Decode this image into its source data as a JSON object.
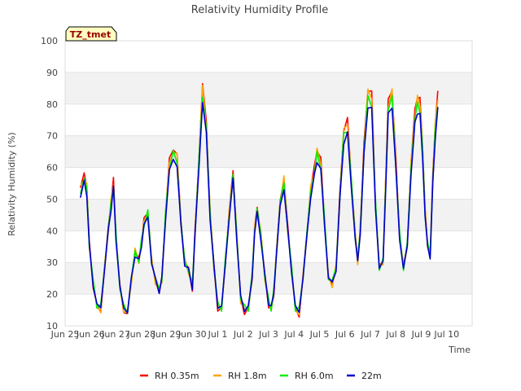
{
  "chart_data": {
    "type": "line",
    "title": "Relativity Humidity Profile",
    "xlabel": "Time",
    "ylabel": "Relativity Humidity (%)",
    "ylim": [
      10,
      100
    ],
    "xlim": [
      0,
      16
    ],
    "grid": "horizontal bands",
    "legend_position": "bottom-center",
    "annotation": "TZ_tmet",
    "y_ticks": [
      10,
      20,
      30,
      40,
      50,
      60,
      70,
      80,
      90,
      100
    ],
    "x_ticks": [
      {
        "pos": 0,
        "label": "Jun 25"
      },
      {
        "pos": 1,
        "label": "Jun 26"
      },
      {
        "pos": 2,
        "label": "Jun 27"
      },
      {
        "pos": 3,
        "label": "Jun 28"
      },
      {
        "pos": 4,
        "label": "Jun 29"
      },
      {
        "pos": 5,
        "label": "Jun 30"
      },
      {
        "pos": 6,
        "label": "Jul 1"
      },
      {
        "pos": 7,
        "label": "Jul 2"
      },
      {
        "pos": 8,
        "label": "Jul 3"
      },
      {
        "pos": 9,
        "label": "Jul 4"
      },
      {
        "pos": 10,
        "label": "Jul 5"
      },
      {
        "pos": 11,
        "label": "Jul 6"
      },
      {
        "pos": 12,
        "label": "Jul 7"
      },
      {
        "pos": 13,
        "label": "Jul 8"
      },
      {
        "pos": 14,
        "label": "Jul 9"
      },
      {
        "pos": 15,
        "label": "Jul 10"
      }
    ],
    "x_day_offset_label": "days since Jun 25",
    "base_profile": {
      "x": [
        0.6,
        0.75,
        0.85,
        0.95,
        1.1,
        1.25,
        1.4,
        1.55,
        1.7,
        1.8,
        1.9,
        2.0,
        2.15,
        2.3,
        2.45,
        2.6,
        2.75,
        2.9,
        3.0,
        3.1,
        3.25,
        3.4,
        3.55,
        3.7,
        3.8,
        3.95,
        4.1,
        4.25,
        4.4,
        4.55,
        4.7,
        4.85,
        5.0,
        5.1,
        5.25,
        5.4,
        5.55,
        5.7,
        5.85,
        6.0,
        6.15,
        6.3,
        6.45,
        6.6,
        6.75,
        6.9,
        7.05,
        7.2,
        7.35,
        7.45,
        7.55,
        7.7,
        7.85,
        8.0,
        8.1,
        8.2,
        8.3,
        8.45,
        8.6,
        8.75,
        8.9,
        9.05,
        9.2,
        9.35,
        9.5,
        9.65,
        9.8,
        9.9,
        10.05,
        10.2,
        10.35,
        10.5,
        10.65,
        10.8,
        10.95,
        11.1,
        11.25,
        11.4,
        11.5,
        11.6,
        11.75,
        11.9,
        12.05,
        12.2,
        12.35,
        12.5,
        12.6,
        12.7,
        12.85,
        13.0,
        13.15,
        13.3,
        13.45,
        13.6,
        13.75,
        13.85,
        13.95,
        14.05,
        14.15,
        14.25,
        14.35,
        14.45,
        14.55,
        14.65
      ],
      "y": [
        52,
        56,
        53,
        35,
        23,
        16,
        15,
        28,
        40,
        48,
        54,
        38,
        22,
        15,
        14,
        24,
        33,
        30,
        36,
        42,
        45,
        30,
        24,
        21,
        24,
        45,
        60,
        64,
        62,
        42,
        30,
        27,
        22,
        38,
        60,
        83,
        72,
        45,
        28,
        16,
        15,
        30,
        45,
        57,
        38,
        18,
        15,
        15,
        25,
        40,
        46,
        38,
        25,
        17,
        15,
        20,
        32,
        48,
        55,
        40,
        28,
        15,
        14,
        25,
        38,
        52,
        58,
        64,
        60,
        42,
        25,
        23,
        28,
        50,
        70,
        72,
        55,
        38,
        30,
        40,
        65,
        82,
        80,
        48,
        28,
        30,
        55,
        78,
        82,
        60,
        38,
        28,
        35,
        60,
        75,
        80,
        78,
        65,
        45,
        35,
        32,
        55,
        72,
        80
      ]
    },
    "series": [
      {
        "name": "RH 0.35m",
        "color": "#ff0000",
        "offset": 0.5,
        "amp": 1.05
      },
      {
        "name": "RH 1.8m",
        "color": "#ffa500",
        "offset": 0.4,
        "amp": 1.03
      },
      {
        "name": "RH 6.0m",
        "color": "#00ee00",
        "offset": 0.6,
        "amp": 0.99
      },
      {
        "name": "22m",
        "color": "#0000cc",
        "offset": 0.0,
        "amp": 0.96
      }
    ]
  }
}
